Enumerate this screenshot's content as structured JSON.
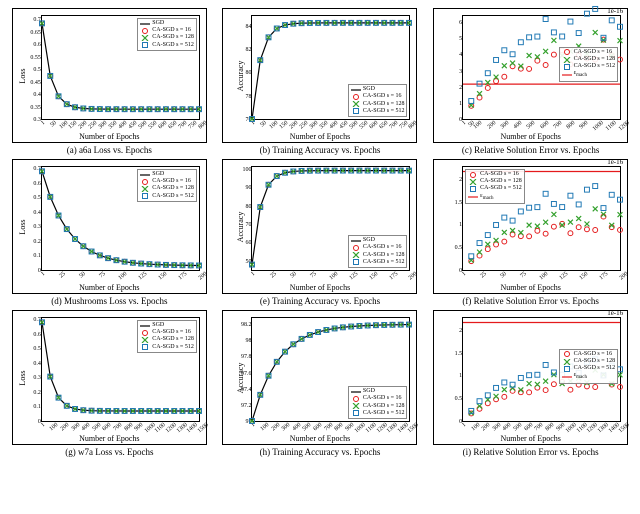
{
  "global": {
    "xlabel": "Number of Epochs",
    "series": {
      "sgd": {
        "label": "SGD",
        "color": "#000000",
        "style": "line"
      },
      "s16": {
        "label": "CA-SGD s = 16",
        "color": "#e41a1c",
        "style": "circle"
      },
      "s128": {
        "label": "CA-SGD s = 128",
        "color": "#33a02c",
        "style": "cross"
      },
      "s512": {
        "label": "CA-SGD s = 512",
        "color": "#1f78b4",
        "style": "square"
      }
    },
    "emach": {
      "label": "ε",
      "sub": "mach",
      "color": "#e41a1c"
    }
  },
  "charts": [
    {
      "id": "a",
      "caption": "(a) a6a Loss vs. Epochs",
      "ylabel": "Loss",
      "exponent": null,
      "xlim": [
        1,
        800
      ],
      "xticks": [
        1,
        50,
        100,
        150,
        200,
        250,
        300,
        350,
        400,
        450,
        500,
        550,
        600,
        650,
        700,
        750,
        800
      ],
      "ylim": [
        0.3,
        0.72
      ],
      "yticks": [
        0.3,
        0.35,
        0.4,
        0.45,
        0.5,
        0.55,
        0.6,
        0.65,
        0.7
      ],
      "legend_pos": "top-right",
      "legend": [
        "sgd",
        "s16",
        "s128",
        "s512"
      ],
      "shape": "decay_fast",
      "y_start": 0.69,
      "y_end": 0.34
    },
    {
      "id": "b",
      "caption": "(b) Training Accuracy vs. Epochs",
      "ylabel": "Accuracy",
      "exponent": null,
      "xlim": [
        1,
        800
      ],
      "xticks": [
        1,
        50,
        100,
        150,
        200,
        250,
        300,
        350,
        400,
        450,
        500,
        550,
        600,
        650,
        700,
        750,
        800
      ],
      "ylim": [
        76,
        85
      ],
      "yticks": [
        76,
        78,
        80,
        82,
        84
      ],
      "legend_pos": "bottom-right",
      "legend": [
        "sgd",
        "s16",
        "s128",
        "s512"
      ],
      "shape": "rise_fast",
      "y_start": 76,
      "y_end": 84.4
    },
    {
      "id": "c",
      "caption": "(c) Relative Solution Error vs. Epochs",
      "ylabel": "Relative Solution Error",
      "exponent": "1e-16",
      "xlim": [
        1,
        1200
      ],
      "xticks": [
        1,
        50,
        100,
        200,
        300,
        400,
        500,
        600,
        700,
        800,
        900,
        1000,
        1100,
        1200
      ],
      "ylim": [
        0,
        6.5
      ],
      "yticks": [
        0,
        1,
        2,
        3,
        4,
        5,
        6
      ],
      "legend_pos": "mid-right",
      "legend": [
        "s16",
        "s128",
        "s512",
        "emach"
      ],
      "shape": "scatter_rise",
      "emach_y": 2.2,
      "scatter_max": {
        "s16": 4.2,
        "s128": 4.8,
        "s512": 6.3
      }
    },
    {
      "id": "d",
      "caption": "(d) Mushrooms Loss vs. Epochs",
      "ylabel": "Loss",
      "exponent": null,
      "xlim": [
        1,
        200
      ],
      "xticks": [
        1,
        25,
        50,
        75,
        100,
        125,
        150,
        175,
        200
      ],
      "ylim": [
        0,
        0.72
      ],
      "yticks": [
        0.0,
        0.1,
        0.2,
        0.3,
        0.4,
        0.5,
        0.6,
        0.7
      ],
      "legend_pos": "top-right",
      "legend": [
        "sgd",
        "s16",
        "s128",
        "s512"
      ],
      "shape": "decay_slow",
      "y_start": 0.69,
      "y_end": 0.03
    },
    {
      "id": "e",
      "caption": "(e) Training Accuracy vs. Epochs",
      "ylabel": "Accuracy",
      "exponent": null,
      "xlim": [
        1,
        200
      ],
      "xticks": [
        1,
        25,
        50,
        75,
        100,
        125,
        150,
        175,
        200
      ],
      "ylim": [
        45,
        102
      ],
      "yticks": [
        50,
        60,
        70,
        80,
        90,
        100
      ],
      "legend_pos": "bottom-right",
      "legend": [
        "sgd",
        "s16",
        "s128",
        "s512"
      ],
      "shape": "rise_fast",
      "y_start": 48,
      "y_end": 100
    },
    {
      "id": "f",
      "caption": "(f) Relative Solution Error vs. Epochs",
      "ylabel": "Relative Solution Error",
      "exponent": "1e-16",
      "xlim": [
        1,
        200
      ],
      "xticks": [
        1,
        25,
        50,
        75,
        100,
        125,
        150,
        175,
        200
      ],
      "ylim": [
        0,
        2.3
      ],
      "yticks": [
        0.0,
        0.5,
        1.0,
        1.5,
        2.0
      ],
      "legend_pos": "top-left",
      "legend": [
        "s16",
        "s128",
        "s512",
        "emach"
      ],
      "shape": "scatter_rise",
      "emach_y": 2.2,
      "scatter_max": {
        "s16": 1.0,
        "s128": 1.2,
        "s512": 1.7
      }
    },
    {
      "id": "g",
      "caption": "(g) w7a Loss vs. Epochs",
      "ylabel": "Loss",
      "exponent": null,
      "xlim": [
        1,
        1500
      ],
      "xticks": [
        1,
        100,
        200,
        300,
        400,
        500,
        600,
        700,
        800,
        900,
        1000,
        1100,
        1200,
        1300,
        1400,
        1500
      ],
      "ylim": [
        0,
        0.72
      ],
      "yticks": [
        0.0,
        0.1,
        0.2,
        0.3,
        0.4,
        0.5,
        0.6,
        0.7
      ],
      "legend_pos": "top-right",
      "legend": [
        "sgd",
        "s16",
        "s128",
        "s512"
      ],
      "shape": "decay_fast",
      "y_start": 0.69,
      "y_end": 0.07
    },
    {
      "id": "h",
      "caption": "(h) Training Accuracy vs. Epochs",
      "ylabel": "Accuracy",
      "exponent": null,
      "xlim": [
        1,
        1500
      ],
      "xticks": [
        1,
        100,
        200,
        300,
        400,
        500,
        600,
        700,
        800,
        900,
        1000,
        1100,
        1200,
        1300,
        1400,
        1500
      ],
      "ylim": [
        97.0,
        98.3
      ],
      "yticks": [
        97.0,
        97.2,
        97.4,
        97.6,
        97.8,
        98.0,
        98.2
      ],
      "legend_pos": "bottom-right",
      "legend": [
        "sgd",
        "s16",
        "s128",
        "s512"
      ],
      "shape": "rise_slow",
      "y_start": 97.0,
      "y_end": 98.22
    },
    {
      "id": "i",
      "caption": "(i) Relative Solution Error vs. Epochs",
      "ylabel": "Relative Solution Error",
      "exponent": "1e-16",
      "xlim": [
        1,
        1500
      ],
      "xticks": [
        1,
        100,
        200,
        300,
        400,
        500,
        600,
        700,
        800,
        900,
        1000,
        1100,
        1200,
        1300,
        1400,
        1500
      ],
      "ylim": [
        0,
        2.3
      ],
      "yticks": [
        0.0,
        0.5,
        1.0,
        1.5,
        2.0
      ],
      "legend_pos": "mid-right",
      "legend": [
        "s16",
        "s128",
        "s512",
        "emach"
      ],
      "shape": "scatter_rise",
      "emach_y": 2.2,
      "scatter_max": {
        "s16": 0.85,
        "s128": 1.0,
        "s512": 1.25
      }
    }
  ]
}
